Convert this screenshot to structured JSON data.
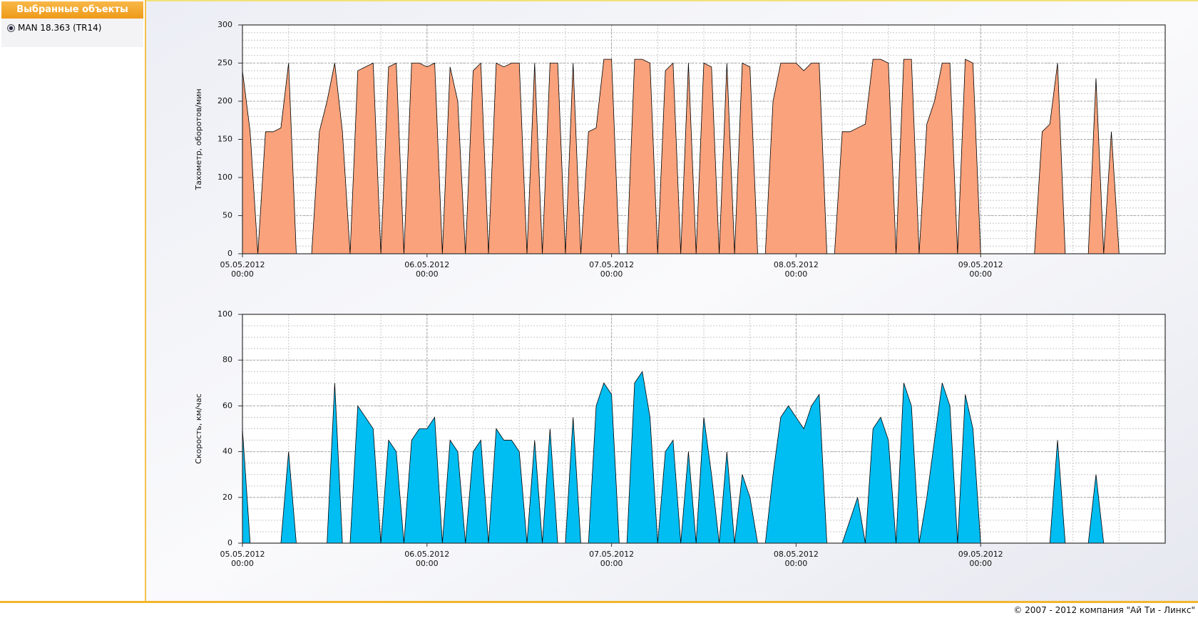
{
  "sidebar": {
    "title": "Выбранные объекты",
    "items": [
      "MAN 18.363 (TR14)"
    ]
  },
  "footer": "© 2007 - 2012 компания \"Ай Ти - Линкс\"",
  "chart_data": [
    {
      "type": "area",
      "y_label": "Тахометр, оборотов/мин",
      "color": "#f9a27c",
      "line_color": "#000000",
      "xlim": [
        "05.05.2012 00:00",
        "10.05.2012 00:00"
      ],
      "xticks": [
        "05.05.2012 00:00",
        "06.05.2012 00:00",
        "07.05.2012 00:00",
        "08.05.2012 00:00",
        "09.05.2012 00:00"
      ],
      "ylim": [
        0,
        300
      ],
      "yticks": [
        0,
        50,
        100,
        150,
        200,
        250,
        300
      ],
      "grid": true,
      "x_minor_divisions": 4,
      "y_minor_divisions": 5,
      "x": [
        "05.05.2012 00:00",
        "05.05.2012 01:00",
        "05.05.2012 02:00",
        "05.05.2012 03:00",
        "05.05.2012 04:00",
        "05.05.2012 05:00",
        "05.05.2012 06:00",
        "05.05.2012 07:00",
        "05.05.2012 08:00",
        "05.05.2012 09:00",
        "05.05.2012 10:00",
        "05.05.2012 11:00",
        "05.05.2012 12:00",
        "05.05.2012 13:00",
        "05.05.2012 14:00",
        "05.05.2012 15:00",
        "05.05.2012 16:00",
        "05.05.2012 17:00",
        "05.05.2012 18:00",
        "05.05.2012 19:00",
        "05.05.2012 20:00",
        "05.05.2012 21:00",
        "05.05.2012 22:00",
        "05.05.2012 23:00",
        "06.05.2012 00:00",
        "06.05.2012 01:00",
        "06.05.2012 02:00",
        "06.05.2012 03:00",
        "06.05.2012 04:00",
        "06.05.2012 05:00",
        "06.05.2012 06:00",
        "06.05.2012 07:00",
        "06.05.2012 08:00",
        "06.05.2012 09:00",
        "06.05.2012 10:00",
        "06.05.2012 11:00",
        "06.05.2012 12:00",
        "06.05.2012 13:00",
        "06.05.2012 14:00",
        "06.05.2012 15:00",
        "06.05.2012 16:00",
        "06.05.2012 17:00",
        "06.05.2012 18:00",
        "06.05.2012 19:00",
        "06.05.2012 20:00",
        "06.05.2012 21:00",
        "06.05.2012 22:00",
        "06.05.2012 23:00",
        "07.05.2012 00:00",
        "07.05.2012 01:00",
        "07.05.2012 02:00",
        "07.05.2012 03:00",
        "07.05.2012 04:00",
        "07.05.2012 05:00",
        "07.05.2012 06:00",
        "07.05.2012 07:00",
        "07.05.2012 08:00",
        "07.05.2012 09:00",
        "07.05.2012 10:00",
        "07.05.2012 11:00",
        "07.05.2012 12:00",
        "07.05.2012 13:00",
        "07.05.2012 14:00",
        "07.05.2012 15:00",
        "07.05.2012 16:00",
        "07.05.2012 17:00",
        "07.05.2012 18:00",
        "07.05.2012 19:00",
        "07.05.2012 20:00",
        "07.05.2012 21:00",
        "07.05.2012 22:00",
        "07.05.2012 23:00",
        "08.05.2012 00:00",
        "08.05.2012 01:00",
        "08.05.2012 02:00",
        "08.05.2012 03:00",
        "08.05.2012 04:00",
        "08.05.2012 05:00",
        "08.05.2012 06:00",
        "08.05.2012 07:00",
        "08.05.2012 08:00",
        "08.05.2012 09:00",
        "08.05.2012 10:00",
        "08.05.2012 11:00",
        "08.05.2012 12:00",
        "08.05.2012 13:00",
        "08.05.2012 14:00",
        "08.05.2012 15:00",
        "08.05.2012 16:00",
        "08.05.2012 17:00",
        "08.05.2012 18:00",
        "08.05.2012 19:00",
        "08.05.2012 20:00",
        "08.05.2012 21:00",
        "08.05.2012 22:00",
        "08.05.2012 23:00",
        "09.05.2012 00:00",
        "09.05.2012 01:00",
        "09.05.2012 02:00",
        "09.05.2012 03:00",
        "09.05.2012 04:00",
        "09.05.2012 05:00",
        "09.05.2012 06:00",
        "09.05.2012 07:00",
        "09.05.2012 08:00",
        "09.05.2012 09:00",
        "09.05.2012 10:00",
        "09.05.2012 11:00",
        "09.05.2012 12:00",
        "09.05.2012 13:00",
        "09.05.2012 14:00",
        "09.05.2012 15:00",
        "09.05.2012 16:00",
        "09.05.2012 17:00",
        "09.05.2012 18:00",
        "09.05.2012 19:00",
        "09.05.2012 20:00",
        "09.05.2012 21:00",
        "09.05.2012 22:00",
        "09.05.2012 23:00",
        "10.05.2012 00:00"
      ],
      "values": [
        240,
        160,
        0,
        160,
        160,
        165,
        250,
        0,
        0,
        0,
        160,
        200,
        250,
        160,
        0,
        240,
        245,
        250,
        0,
        245,
        250,
        0,
        250,
        250,
        245,
        250,
        0,
        245,
        200,
        0,
        240,
        250,
        0,
        250,
        245,
        250,
        250,
        0,
        250,
        0,
        250,
        250,
        0,
        250,
        0,
        160,
        165,
        255,
        255,
        0,
        0,
        255,
        255,
        250,
        0,
        240,
        250,
        0,
        250,
        0,
        250,
        245,
        0,
        250,
        0,
        250,
        245,
        0,
        0,
        200,
        250,
        250,
        250,
        240,
        250,
        250,
        0,
        0,
        160,
        160,
        165,
        170,
        255,
        255,
        250,
        0,
        255,
        255,
        0,
        170,
        200,
        250,
        250,
        0,
        255,
        250,
        0,
        0,
        0,
        0,
        0,
        0,
        0,
        0,
        160,
        170,
        250,
        0,
        0,
        0,
        0,
        230,
        0,
        160,
        0,
        0,
        0,
        0,
        0,
        0,
        0
      ]
    },
    {
      "type": "area",
      "y_label": "Скорость, км/час",
      "color": "#00bdf2",
      "line_color": "#000000",
      "xlim": [
        "05.05.2012 00:00",
        "10.05.2012 00:00"
      ],
      "xticks": [
        "05.05.2012 00:00",
        "06.05.2012 00:00",
        "07.05.2012 00:00",
        "08.05.2012 00:00",
        "09.05.2012 00:00"
      ],
      "ylim": [
        0,
        100
      ],
      "yticks": [
        0,
        20,
        40,
        60,
        80,
        100
      ],
      "grid": true,
      "x_minor_divisions": 4,
      "y_minor_divisions": 4,
      "x": [
        "05.05.2012 00:00",
        "05.05.2012 01:00",
        "05.05.2012 02:00",
        "05.05.2012 03:00",
        "05.05.2012 04:00",
        "05.05.2012 05:00",
        "05.05.2012 06:00",
        "05.05.2012 07:00",
        "05.05.2012 08:00",
        "05.05.2012 09:00",
        "05.05.2012 10:00",
        "05.05.2012 11:00",
        "05.05.2012 12:00",
        "05.05.2012 13:00",
        "05.05.2012 14:00",
        "05.05.2012 15:00",
        "05.05.2012 16:00",
        "05.05.2012 17:00",
        "05.05.2012 18:00",
        "05.05.2012 19:00",
        "05.05.2012 20:00",
        "05.05.2012 21:00",
        "05.05.2012 22:00",
        "05.05.2012 23:00",
        "06.05.2012 00:00",
        "06.05.2012 01:00",
        "06.05.2012 02:00",
        "06.05.2012 03:00",
        "06.05.2012 04:00",
        "06.05.2012 05:00",
        "06.05.2012 06:00",
        "06.05.2012 07:00",
        "06.05.2012 08:00",
        "06.05.2012 09:00",
        "06.05.2012 10:00",
        "06.05.2012 11:00",
        "06.05.2012 12:00",
        "06.05.2012 13:00",
        "06.05.2012 14:00",
        "06.05.2012 15:00",
        "06.05.2012 16:00",
        "06.05.2012 17:00",
        "06.05.2012 18:00",
        "06.05.2012 19:00",
        "06.05.2012 20:00",
        "06.05.2012 21:00",
        "06.05.2012 22:00",
        "06.05.2012 23:00",
        "07.05.2012 00:00",
        "07.05.2012 01:00",
        "07.05.2012 02:00",
        "07.05.2012 03:00",
        "07.05.2012 04:00",
        "07.05.2012 05:00",
        "07.05.2012 06:00",
        "07.05.2012 07:00",
        "07.05.2012 08:00",
        "07.05.2012 09:00",
        "07.05.2012 10:00",
        "07.05.2012 11:00",
        "07.05.2012 12:00",
        "07.05.2012 13:00",
        "07.05.2012 14:00",
        "07.05.2012 15:00",
        "07.05.2012 16:00",
        "07.05.2012 17:00",
        "07.05.2012 18:00",
        "07.05.2012 19:00",
        "07.05.2012 20:00",
        "07.05.2012 21:00",
        "07.05.2012 22:00",
        "07.05.2012 23:00",
        "08.05.2012 00:00",
        "08.05.2012 01:00",
        "08.05.2012 02:00",
        "08.05.2012 03:00",
        "08.05.2012 04:00",
        "08.05.2012 05:00",
        "08.05.2012 06:00",
        "08.05.2012 07:00",
        "08.05.2012 08:00",
        "08.05.2012 09:00",
        "08.05.2012 10:00",
        "08.05.2012 11:00",
        "08.05.2012 12:00",
        "08.05.2012 13:00",
        "08.05.2012 14:00",
        "08.05.2012 15:00",
        "08.05.2012 16:00",
        "08.05.2012 17:00",
        "08.05.2012 18:00",
        "08.05.2012 19:00",
        "08.05.2012 20:00",
        "08.05.2012 21:00",
        "08.05.2012 22:00",
        "08.05.2012 23:00",
        "09.05.2012 00:00",
        "09.05.2012 01:00",
        "09.05.2012 02:00",
        "09.05.2012 03:00",
        "09.05.2012 04:00",
        "09.05.2012 05:00",
        "09.05.2012 06:00",
        "09.05.2012 07:00",
        "09.05.2012 08:00",
        "09.05.2012 09:00",
        "09.05.2012 10:00",
        "09.05.2012 11:00",
        "09.05.2012 12:00",
        "09.05.2012 13:00",
        "09.05.2012 14:00",
        "09.05.2012 15:00",
        "09.05.2012 16:00",
        "09.05.2012 17:00",
        "09.05.2012 18:00",
        "09.05.2012 19:00",
        "09.05.2012 20:00",
        "09.05.2012 21:00",
        "09.05.2012 22:00",
        "09.05.2012 23:00",
        "10.05.2012 00:00"
      ],
      "values": [
        50,
        0,
        0,
        0,
        0,
        0,
        40,
        0,
        0,
        0,
        0,
        0,
        70,
        0,
        0,
        60,
        55,
        50,
        0,
        45,
        40,
        0,
        45,
        50,
        50,
        55,
        0,
        45,
        40,
        0,
        40,
        45,
        0,
        50,
        45,
        45,
        40,
        0,
        45,
        0,
        50,
        0,
        0,
        55,
        0,
        0,
        60,
        70,
        65,
        0,
        0,
        70,
        75,
        55,
        0,
        40,
        45,
        0,
        40,
        0,
        55,
        30,
        0,
        40,
        0,
        30,
        20,
        0,
        0,
        30,
        55,
        60,
        55,
        50,
        60,
        65,
        0,
        0,
        0,
        10,
        20,
        0,
        50,
        55,
        45,
        0,
        70,
        60,
        0,
        20,
        45,
        70,
        60,
        0,
        65,
        50,
        0,
        0,
        0,
        0,
        0,
        0,
        0,
        0,
        0,
        0,
        45,
        0,
        0,
        0,
        0,
        30,
        0,
        0,
        0,
        0,
        0,
        0,
        0,
        0,
        0
      ]
    }
  ]
}
